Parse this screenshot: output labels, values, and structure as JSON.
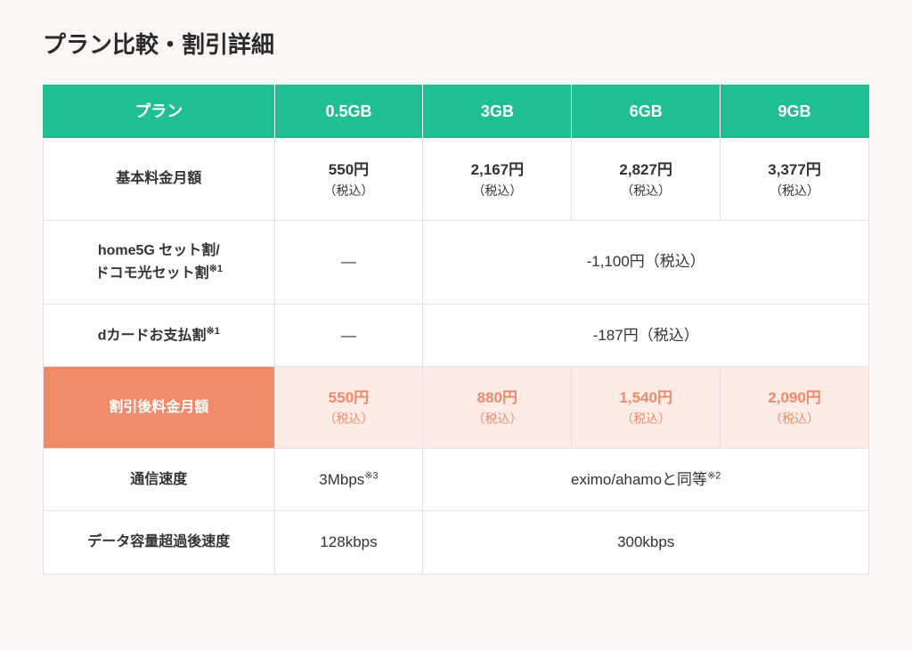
{
  "title": "プラン比較・割引詳細",
  "colors": {
    "header_bg": "#1fbf92",
    "header_text": "#ffffff",
    "highlight_label_bg": "#f08a6b",
    "highlight_cell_bg": "#fdece6",
    "highlight_text": "#f08a6b",
    "page_bg": "#faf7f4",
    "border": "#e2e2e2",
    "body_text": "#333333"
  },
  "headers": {
    "plan": "プラン",
    "c1": "0.5GB",
    "c2": "3GB",
    "c3": "6GB",
    "c4": "9GB"
  },
  "rows": {
    "base": {
      "label": "基本料金月額",
      "c1": {
        "main": "550円",
        "sub": "（税込）"
      },
      "c2": {
        "main": "2,167円",
        "sub": "（税込）"
      },
      "c3": {
        "main": "2,827円",
        "sub": "（税込）"
      },
      "c4": {
        "main": "3,377円",
        "sub": "（税込）"
      }
    },
    "setwari": {
      "label_l1": "home5G セット割/",
      "label_l2": "ドコモ光セット割",
      "label_sup": "※1",
      "c1": "―",
      "merged": "-1,100円（税込）"
    },
    "dcard": {
      "label": "dカードお支払割",
      "label_sup": "※1",
      "c1": "―",
      "merged": "-187円（税込）"
    },
    "discounted": {
      "label": "割引後料金月額",
      "c1": {
        "main": "550円",
        "sub": "（税込）"
      },
      "c2": {
        "main": "880円",
        "sub": "（税込）"
      },
      "c3": {
        "main": "1,540円",
        "sub": "（税込）"
      },
      "c4": {
        "main": "2,090円",
        "sub": "（税込）"
      }
    },
    "speed": {
      "label": "通信速度",
      "c1": "3Mbps",
      "c1_sup": "※3",
      "merged": "eximo/ahamoと同等",
      "merged_sup": "※2"
    },
    "overage": {
      "label": "データ容量超過後速度",
      "c1": "128kbps",
      "merged": "300kbps"
    }
  }
}
